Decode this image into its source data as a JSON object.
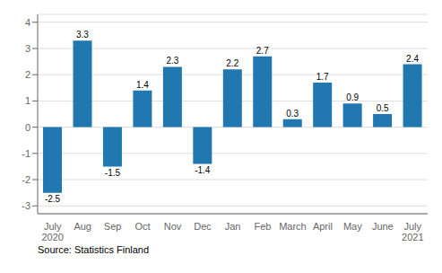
{
  "chart_data": {
    "type": "bar",
    "categories": [
      "July\n2020",
      "Aug",
      "Sep",
      "Oct",
      "Nov",
      "Dec",
      "Jan",
      "Feb",
      "March",
      "April",
      "May",
      "June",
      "July\n2021"
    ],
    "values": [
      -2.5,
      3.3,
      -1.5,
      1.4,
      2.3,
      -1.4,
      2.2,
      2.7,
      0.3,
      1.7,
      0.9,
      0.5,
      2.4
    ],
    "color": "#2177b0",
    "ylim": [
      -3.3,
      4.3
    ],
    "yticks": [
      -3,
      -2,
      -1,
      0,
      1,
      2,
      3,
      4
    ],
    "grid": true,
    "data_labels": true,
    "annotations": [
      "Source: Statistics Finland"
    ]
  }
}
